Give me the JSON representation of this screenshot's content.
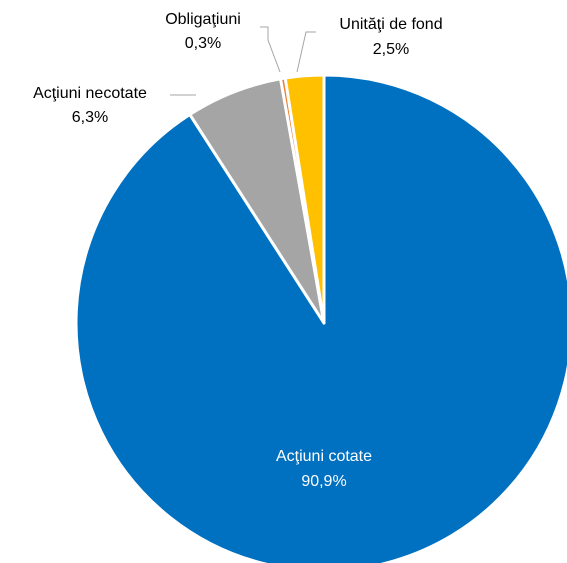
{
  "chart_data": {
    "type": "pie",
    "start_angle_deg": 0,
    "direction": "clockwise",
    "legend": "none",
    "slices": [
      {
        "name": "Acţiuni cotate",
        "value": 90.9,
        "label": "90,9%",
        "color": "#0070C0",
        "label_color": "#ffffff"
      },
      {
        "name": "Acţiuni necotate",
        "value": 6.3,
        "label": "6,3%",
        "color": "#A5A5A5",
        "label_color": "#000000"
      },
      {
        "name": "Obligaţiuni",
        "value": 0.3,
        "label": "0,3%",
        "color": "#ED7D31",
        "label_color": "#000000"
      },
      {
        "name": "Unităţi de fond",
        "value": 2.5,
        "label": "2,5%",
        "color": "#FFC000",
        "label_color": "#000000"
      }
    ]
  }
}
